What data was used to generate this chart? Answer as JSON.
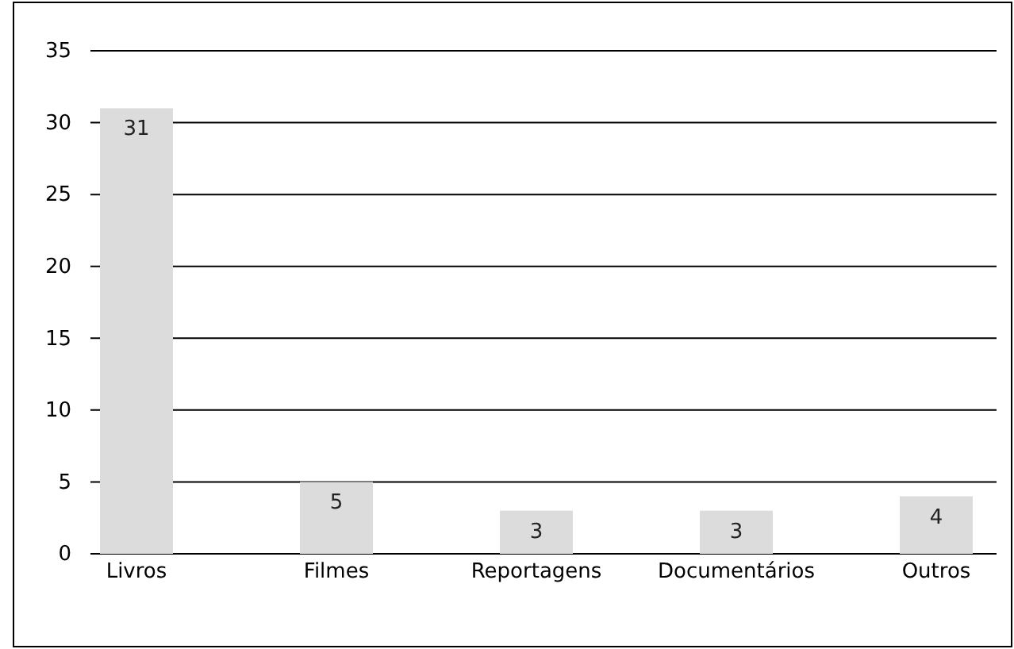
{
  "chart_data": {
    "type": "bar",
    "categories": [
      "Livros",
      "Filmes",
      "Reportagens",
      "Documentários",
      "Outros"
    ],
    "values": [
      31,
      5,
      3,
      3,
      4
    ],
    "color": "#dcdcdc",
    "ylim": [
      0,
      35
    ],
    "yticks": [
      0,
      5,
      10,
      15,
      20,
      25,
      30,
      35
    ],
    "grid": "y",
    "data_labels": true
  }
}
